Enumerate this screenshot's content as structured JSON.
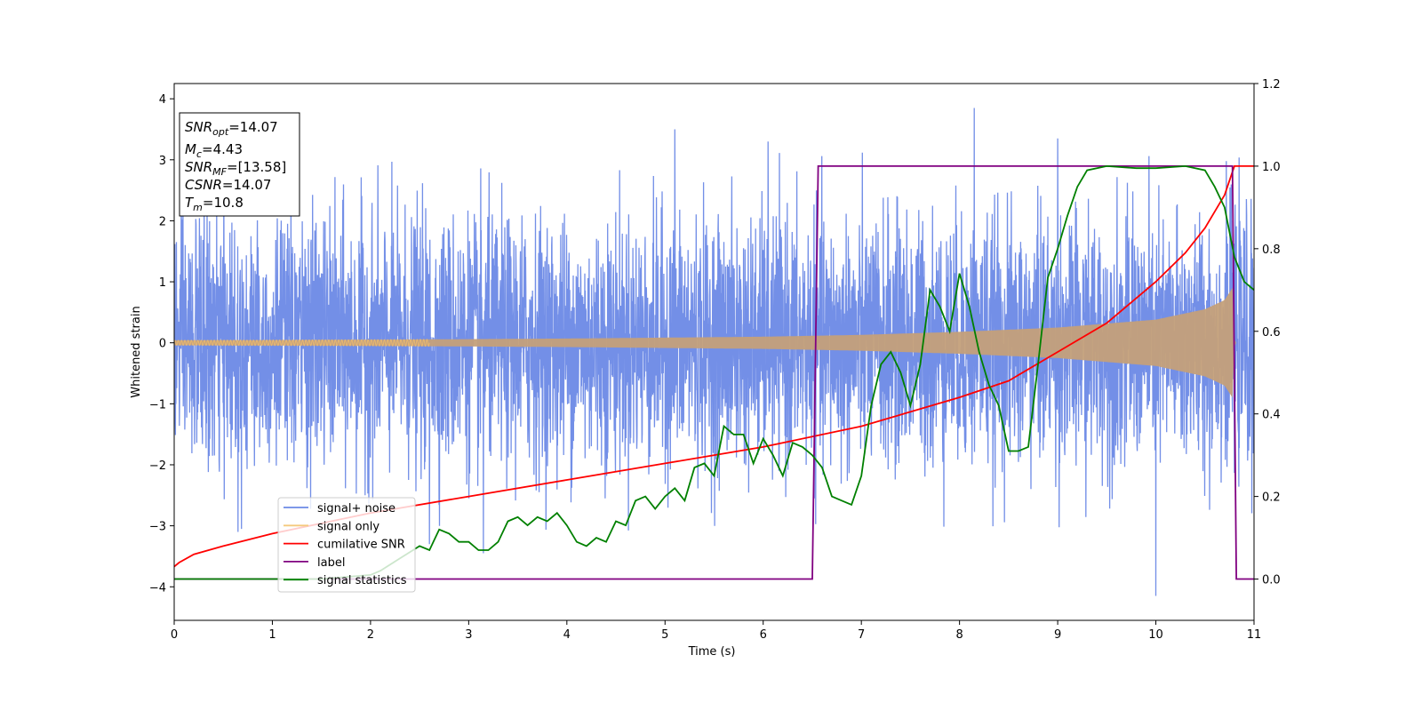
{
  "chart_data": {
    "type": "line",
    "title": "",
    "xlabel": "Time (s)",
    "ylabel": "Whitened strain",
    "xlim": [
      0,
      11
    ],
    "ylim": [
      -4.55,
      4.25
    ],
    "y2lim": [
      -0.1,
      1.2
    ],
    "x_ticks": [
      0,
      1,
      2,
      3,
      4,
      5,
      6,
      7,
      8,
      9,
      10,
      11
    ],
    "y_ticks": [
      4,
      3,
      2,
      1,
      0,
      -1,
      -2,
      -3,
      -4
    ],
    "y2_ticks": [
      "1.2",
      "1.0",
      "0.8",
      "0.6",
      "0.4",
      "0.2",
      "0.0"
    ],
    "grid": false,
    "legend_position": "lower-left",
    "series": [
      {
        "name": "signal+ noise",
        "axis": "left",
        "color": "#6b89e6",
        "kind": "noise",
        "noise_sigma": 1.0,
        "highlight_peaks": [
          [
            5.1,
            3.5
          ],
          [
            6.05,
            3.3
          ],
          [
            8.15,
            3.85
          ],
          [
            9.0,
            3.35
          ],
          [
            10.0,
            -4.15
          ],
          [
            0.65,
            -3.1
          ],
          [
            2.6,
            -3.3
          ],
          [
            3.15,
            -3.45
          ]
        ]
      },
      {
        "name": "signal only",
        "axis": "left",
        "color": "#f5c97d",
        "kind": "chirp",
        "envelope": [
          [
            0,
            0.04
          ],
          [
            2,
            0.05
          ],
          [
            4,
            0.07
          ],
          [
            6,
            0.1
          ],
          [
            7,
            0.13
          ],
          [
            8,
            0.18
          ],
          [
            9,
            0.25
          ],
          [
            10,
            0.38
          ],
          [
            10.5,
            0.55
          ],
          [
            10.7,
            0.7
          ],
          [
            10.78,
            0.9
          ],
          [
            10.8,
            0.0
          ],
          [
            11,
            0.0
          ]
        ]
      },
      {
        "name": "cumilative SNR",
        "axis": "right",
        "color": "#ff0000",
        "x": [
          0,
          0.05,
          0.2,
          0.5,
          1,
          2,
          3,
          4,
          5,
          6,
          7,
          8,
          8.5,
          9,
          9.5,
          10,
          10.3,
          10.5,
          10.7,
          10.8,
          11
        ],
        "y": [
          0.03,
          0.04,
          0.06,
          0.08,
          0.11,
          0.16,
          0.2,
          0.24,
          0.28,
          0.32,
          0.37,
          0.44,
          0.48,
          0.55,
          0.62,
          0.72,
          0.79,
          0.85,
          0.93,
          1.0,
          1.0
        ]
      },
      {
        "name": "label",
        "axis": "right",
        "color": "#800080",
        "x": [
          0,
          6.5,
          6.56,
          10.78,
          10.82,
          11
        ],
        "y": [
          0.0,
          0.0,
          1.0,
          1.0,
          0.0,
          0.0
        ]
      },
      {
        "name": "signal statistics",
        "axis": "right",
        "color": "#008000",
        "x": [
          0,
          1.5,
          2.0,
          2.1,
          2.3,
          2.5,
          2.6,
          2.7,
          2.8,
          2.9,
          3.0,
          3.1,
          3.2,
          3.3,
          3.4,
          3.5,
          3.6,
          3.7,
          3.8,
          3.9,
          4.0,
          4.1,
          4.2,
          4.3,
          4.4,
          4.5,
          4.6,
          4.7,
          4.8,
          4.9,
          5.0,
          5.1,
          5.2,
          5.3,
          5.4,
          5.5,
          5.6,
          5.7,
          5.8,
          5.9,
          6.0,
          6.1,
          6.2,
          6.3,
          6.4,
          6.5,
          6.6,
          6.7,
          6.8,
          6.9,
          7.0,
          7.1,
          7.2,
          7.3,
          7.4,
          7.5,
          7.6,
          7.7,
          7.8,
          7.9,
          8.0,
          8.1,
          8.2,
          8.3,
          8.4,
          8.5,
          8.6,
          8.7,
          8.8,
          8.9,
          9.0,
          9.1,
          9.2,
          9.3,
          9.5,
          9.8,
          10.0,
          10.3,
          10.5,
          10.6,
          10.7,
          10.8,
          10.9,
          11.0
        ],
        "y": [
          0.0,
          0.0,
          0.01,
          0.02,
          0.05,
          0.08,
          0.07,
          0.12,
          0.11,
          0.09,
          0.09,
          0.07,
          0.07,
          0.09,
          0.14,
          0.15,
          0.13,
          0.15,
          0.14,
          0.16,
          0.13,
          0.09,
          0.08,
          0.1,
          0.09,
          0.14,
          0.13,
          0.19,
          0.2,
          0.17,
          0.2,
          0.22,
          0.19,
          0.27,
          0.28,
          0.25,
          0.37,
          0.35,
          0.35,
          0.28,
          0.34,
          0.3,
          0.25,
          0.33,
          0.32,
          0.3,
          0.27,
          0.2,
          0.19,
          0.18,
          0.25,
          0.42,
          0.52,
          0.55,
          0.5,
          0.42,
          0.52,
          0.7,
          0.66,
          0.6,
          0.74,
          0.66,
          0.55,
          0.47,
          0.42,
          0.31,
          0.31,
          0.32,
          0.52,
          0.73,
          0.8,
          0.88,
          0.95,
          0.99,
          1.0,
          0.995,
          0.995,
          1.0,
          0.99,
          0.95,
          0.9,
          0.78,
          0.72,
          0.7
        ]
      }
    ],
    "annotation": {
      "lines": [
        {
          "sym": "SNR",
          "sub": "opt",
          "value": "=14.07"
        },
        {
          "sym": "M",
          "sub": "c",
          "value": "=4.43"
        },
        {
          "sym": "SNR",
          "sub": "MF",
          "value": "=[13.58]"
        },
        {
          "sym": "CSNR",
          "sub": "",
          "value": "=14.07"
        },
        {
          "sym": "T",
          "sub": "m",
          "value": "=10.8"
        }
      ]
    }
  }
}
